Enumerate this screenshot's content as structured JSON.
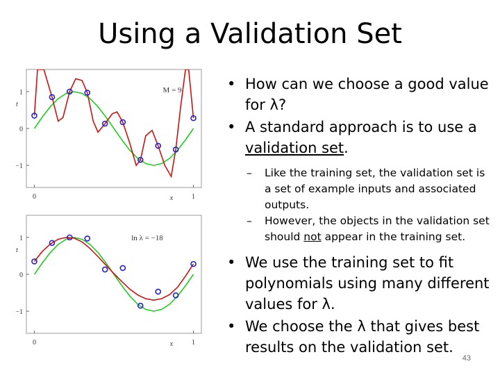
{
  "slide": {
    "title": "Using a Validation Set",
    "page_number": "43"
  },
  "bullets": [
    {
      "level": 1,
      "parts": [
        {
          "text": "How can we choose a good value for λ?"
        }
      ]
    },
    {
      "level": 1,
      "parts": [
        {
          "text": "A standard approach is to use a "
        },
        {
          "text": "validation set",
          "underline": true
        },
        {
          "text": "."
        }
      ]
    },
    {
      "level": 2,
      "parts": [
        {
          "text": "Like the training set, the validation set is a set of example inputs and associated outputs."
        }
      ]
    },
    {
      "level": 2,
      "parts": [
        {
          "text": "However, the objects in the validation set should "
        },
        {
          "text": "not",
          "underline": true
        },
        {
          "text": " appear in the training set."
        }
      ]
    },
    {
      "level": 1,
      "parts": [
        {
          "text": "We use the training set to fit polynomials using many different values for λ."
        }
      ]
    },
    {
      "level": 1,
      "parts": [
        {
          "text": "We choose the λ that gives best results on the validation set."
        }
      ]
    }
  ],
  "colors": {
    "true_curve": "#22cc22",
    "fit_curve": "#cc1111",
    "points": "#2222cc"
  },
  "chart_data": [
    {
      "type": "line",
      "annotation": "M = 9",
      "xlabel": "x",
      "ylabel": "t",
      "xticks": [
        "0",
        "1"
      ],
      "yticks": [
        "1",
        "0",
        "−1"
      ],
      "xlim": [
        -0.05,
        1.05
      ],
      "ylim": [
        -1.6,
        1.6
      ],
      "points": {
        "x": [
          0.0,
          0.111,
          0.222,
          0.333,
          0.444,
          0.556,
          0.667,
          0.778,
          0.889,
          1.0
        ],
        "y": [
          0.35,
          0.85,
          1.0,
          0.97,
          0.13,
          0.17,
          -0.85,
          -0.47,
          -0.57,
          0.28
        ]
      },
      "series": [
        {
          "kind": "true",
          "x": [
            0,
            0.05,
            0.1,
            0.15,
            0.2,
            0.25,
            0.3,
            0.35,
            0.4,
            0.45,
            0.5,
            0.55,
            0.6,
            0.65,
            0.7,
            0.75,
            0.8,
            0.85,
            0.9,
            0.95,
            1.0
          ],
          "y": [
            0,
            0.31,
            0.59,
            0.81,
            0.95,
            1.0,
            0.95,
            0.81,
            0.59,
            0.31,
            0,
            -0.31,
            -0.59,
            -0.81,
            -0.95,
            -1.0,
            -0.95,
            -0.81,
            -0.59,
            -0.31,
            0
          ]
        },
        {
          "kind": "fit",
          "x": [
            0.0,
            0.02,
            0.04,
            0.06,
            0.08,
            0.111,
            0.15,
            0.18,
            0.222,
            0.26,
            0.3,
            0.333,
            0.37,
            0.4,
            0.444,
            0.49,
            0.52,
            0.556,
            0.6,
            0.64,
            0.667,
            0.7,
            0.74,
            0.778,
            0.82,
            0.86,
            0.889,
            0.92,
            0.95,
            0.97,
            1.0
          ],
          "y": [
            0.35,
            1.6,
            1.6,
            1.6,
            1.3,
            0.85,
            0.2,
            0.3,
            1.0,
            1.35,
            1.3,
            0.97,
            0.2,
            -0.1,
            0.13,
            0.4,
            0.45,
            0.17,
            -0.4,
            -1.0,
            -0.85,
            -0.2,
            -0.05,
            -0.47,
            -1.0,
            -1.3,
            -0.57,
            0.6,
            1.6,
            1.6,
            0.28
          ]
        }
      ]
    },
    {
      "type": "line",
      "annotation": "ln λ = −18",
      "xlabel": "x",
      "ylabel": "t",
      "xticks": [
        "0",
        "1"
      ],
      "yticks": [
        "1",
        "0",
        "−1"
      ],
      "xlim": [
        -0.05,
        1.05
      ],
      "ylim": [
        -1.6,
        1.6
      ],
      "points": {
        "x": [
          0.0,
          0.111,
          0.222,
          0.333,
          0.444,
          0.556,
          0.667,
          0.778,
          0.889,
          1.0
        ],
        "y": [
          0.35,
          0.85,
          1.0,
          0.97,
          0.13,
          0.17,
          -0.85,
          -0.47,
          -0.57,
          0.28
        ]
      },
      "series": [
        {
          "kind": "true",
          "x": [
            0,
            0.05,
            0.1,
            0.15,
            0.2,
            0.25,
            0.3,
            0.35,
            0.4,
            0.45,
            0.5,
            0.55,
            0.6,
            0.65,
            0.7,
            0.75,
            0.8,
            0.85,
            0.9,
            0.95,
            1.0
          ],
          "y": [
            0,
            0.31,
            0.59,
            0.81,
            0.95,
            1.0,
            0.95,
            0.81,
            0.59,
            0.31,
            0,
            -0.31,
            -0.59,
            -0.81,
            -0.95,
            -1.0,
            -0.95,
            -0.81,
            -0.59,
            -0.31,
            0
          ]
        },
        {
          "kind": "fit",
          "x": [
            0,
            0.05,
            0.1,
            0.15,
            0.2,
            0.25,
            0.3,
            0.35,
            0.4,
            0.45,
            0.5,
            0.55,
            0.6,
            0.65,
            0.7,
            0.75,
            0.8,
            0.85,
            0.9,
            0.95,
            1.0
          ],
          "y": [
            0.35,
            0.62,
            0.82,
            0.95,
            1.0,
            0.98,
            0.88,
            0.7,
            0.48,
            0.25,
            0.02,
            -0.2,
            -0.4,
            -0.56,
            -0.66,
            -0.7,
            -0.66,
            -0.55,
            -0.35,
            -0.05,
            0.28
          ]
        }
      ]
    }
  ]
}
